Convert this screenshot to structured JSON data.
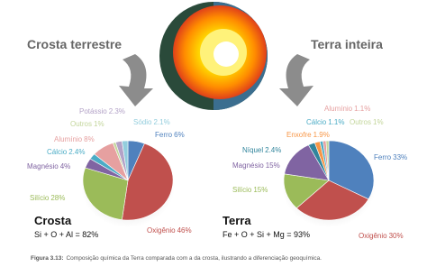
{
  "chart_data": [
    {
      "type": "pie",
      "title": "Crosta terrestre",
      "label": "Crosta",
      "annotation": "Si + O + Al = 82%",
      "categories": [
        "Ferro",
        "Oxigênio",
        "Silício",
        "Magnésio",
        "Cálcio",
        "Alumínio",
        "Outros",
        "Potássio",
        "Sódio"
      ],
      "values": [
        6,
        46,
        28,
        4,
        2.4,
        8,
        1,
        2.3,
        2.1
      ],
      "value_labels": [
        "6%",
        "46%",
        "28%",
        "4%",
        "2.4%",
        "8%",
        "1%",
        "2.3%",
        "2.1%"
      ],
      "colors": [
        "#4f81bd",
        "#c0504d",
        "#9bbb59",
        "#8064a2",
        "#4bacc6",
        "#e6a0a0",
        "#c3d69b",
        "#b3a2c7",
        "#93cddd"
      ]
    },
    {
      "type": "pie",
      "title": "Terra inteira",
      "label": "Terra",
      "annotation": "Fe + O + Si + Mg = 93%",
      "categories": [
        "Ferro",
        "Oxigênio",
        "Silício",
        "Magnésio",
        "Níquel",
        "Enxofre",
        "Cálcio",
        "Alumínio",
        "Outros"
      ],
      "values": [
        33,
        30,
        15,
        15,
        2.4,
        1.9,
        1.1,
        1.1,
        1
      ],
      "value_labels": [
        "33%",
        "30%",
        "15%",
        "15%",
        "2.4%",
        "1.9%",
        "1.1%",
        "1.1%",
        "1%"
      ],
      "colors": [
        "#4f81bd",
        "#c0504d",
        "#9bbb59",
        "#8064a2",
        "#31859c",
        "#f79646",
        "#4bacc6",
        "#e6a0a0",
        "#c3d69b"
      ]
    }
  ],
  "caption": {
    "label": "Figura 3.13:",
    "text": "Composição química da Terra comparada com a da crosta, ilustrando a diferenciação geoquímica."
  }
}
